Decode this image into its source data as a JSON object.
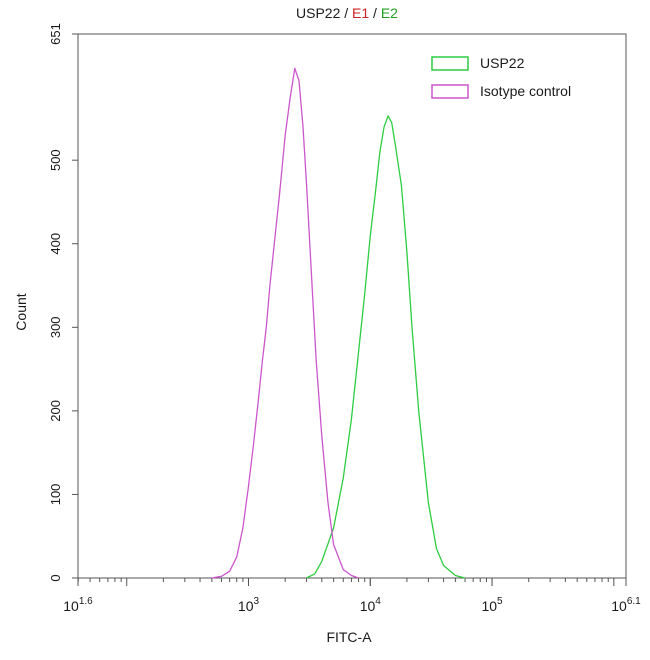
{
  "chart_data": {
    "type": "line",
    "title_parts": [
      {
        "text": "USP22",
        "color": "#1a1a1a"
      },
      {
        "text": " / ",
        "color": "#1a1a1a"
      },
      {
        "text": "E1",
        "color": "#cc2222"
      },
      {
        "text": " / ",
        "color": "#1a1a1a"
      },
      {
        "text": "E2",
        "color": "#22a022"
      }
    ],
    "xlabel": "FITC-A",
    "ylabel": "Count",
    "x_scale": "log10",
    "xlim": [
      39.8,
      1258925
    ],
    "ylim": [
      0,
      651
    ],
    "x_ticks": [
      {
        "base": "10",
        "exp": "1.6",
        "value": 39.8
      },
      {
        "base": "10",
        "exp": "3",
        "value": 1000
      },
      {
        "base": "10",
        "exp": "4",
        "value": 10000
      },
      {
        "base": "10",
        "exp": "5",
        "value": 100000
      },
      {
        "base": "10",
        "exp": "6.1",
        "value": 1258925
      }
    ],
    "y_ticks": [
      "0",
      "100",
      "200",
      "300",
      "400",
      "500",
      "651"
    ],
    "grid": false,
    "legend_position": "top-right",
    "series": [
      {
        "name": "USP22",
        "color": "#2ecc40",
        "x": [
          3000,
          3500,
          4000,
          5000,
          6000,
          7000,
          8000,
          9000,
          10000,
          11000,
          12000,
          13000,
          14000,
          15000,
          16000,
          18000,
          20000,
          22000,
          25000,
          30000,
          35000,
          40000,
          50000,
          60000
        ],
        "y": [
          0,
          5,
          20,
          60,
          120,
          190,
          270,
          340,
          410,
          460,
          510,
          540,
          553,
          545,
          520,
          470,
          390,
          300,
          200,
          90,
          35,
          15,
          3,
          0
        ]
      },
      {
        "name": "Isotype control",
        "color": "#cc55cc",
        "x": [
          500,
          600,
          700,
          800,
          900,
          1000,
          1100,
          1200,
          1300,
          1400,
          1500,
          1600,
          1800,
          2000,
          2200,
          2400,
          2600,
          2800,
          3000,
          3300,
          3600,
          4000,
          4500,
          5000,
          6000,
          7000,
          8000
        ],
        "y": [
          0,
          2,
          8,
          25,
          60,
          110,
          160,
          210,
          260,
          300,
          350,
          390,
          460,
          530,
          575,
          610,
          595,
          540,
          470,
          360,
          260,
          170,
          90,
          40,
          10,
          3,
          0
        ]
      }
    ]
  }
}
